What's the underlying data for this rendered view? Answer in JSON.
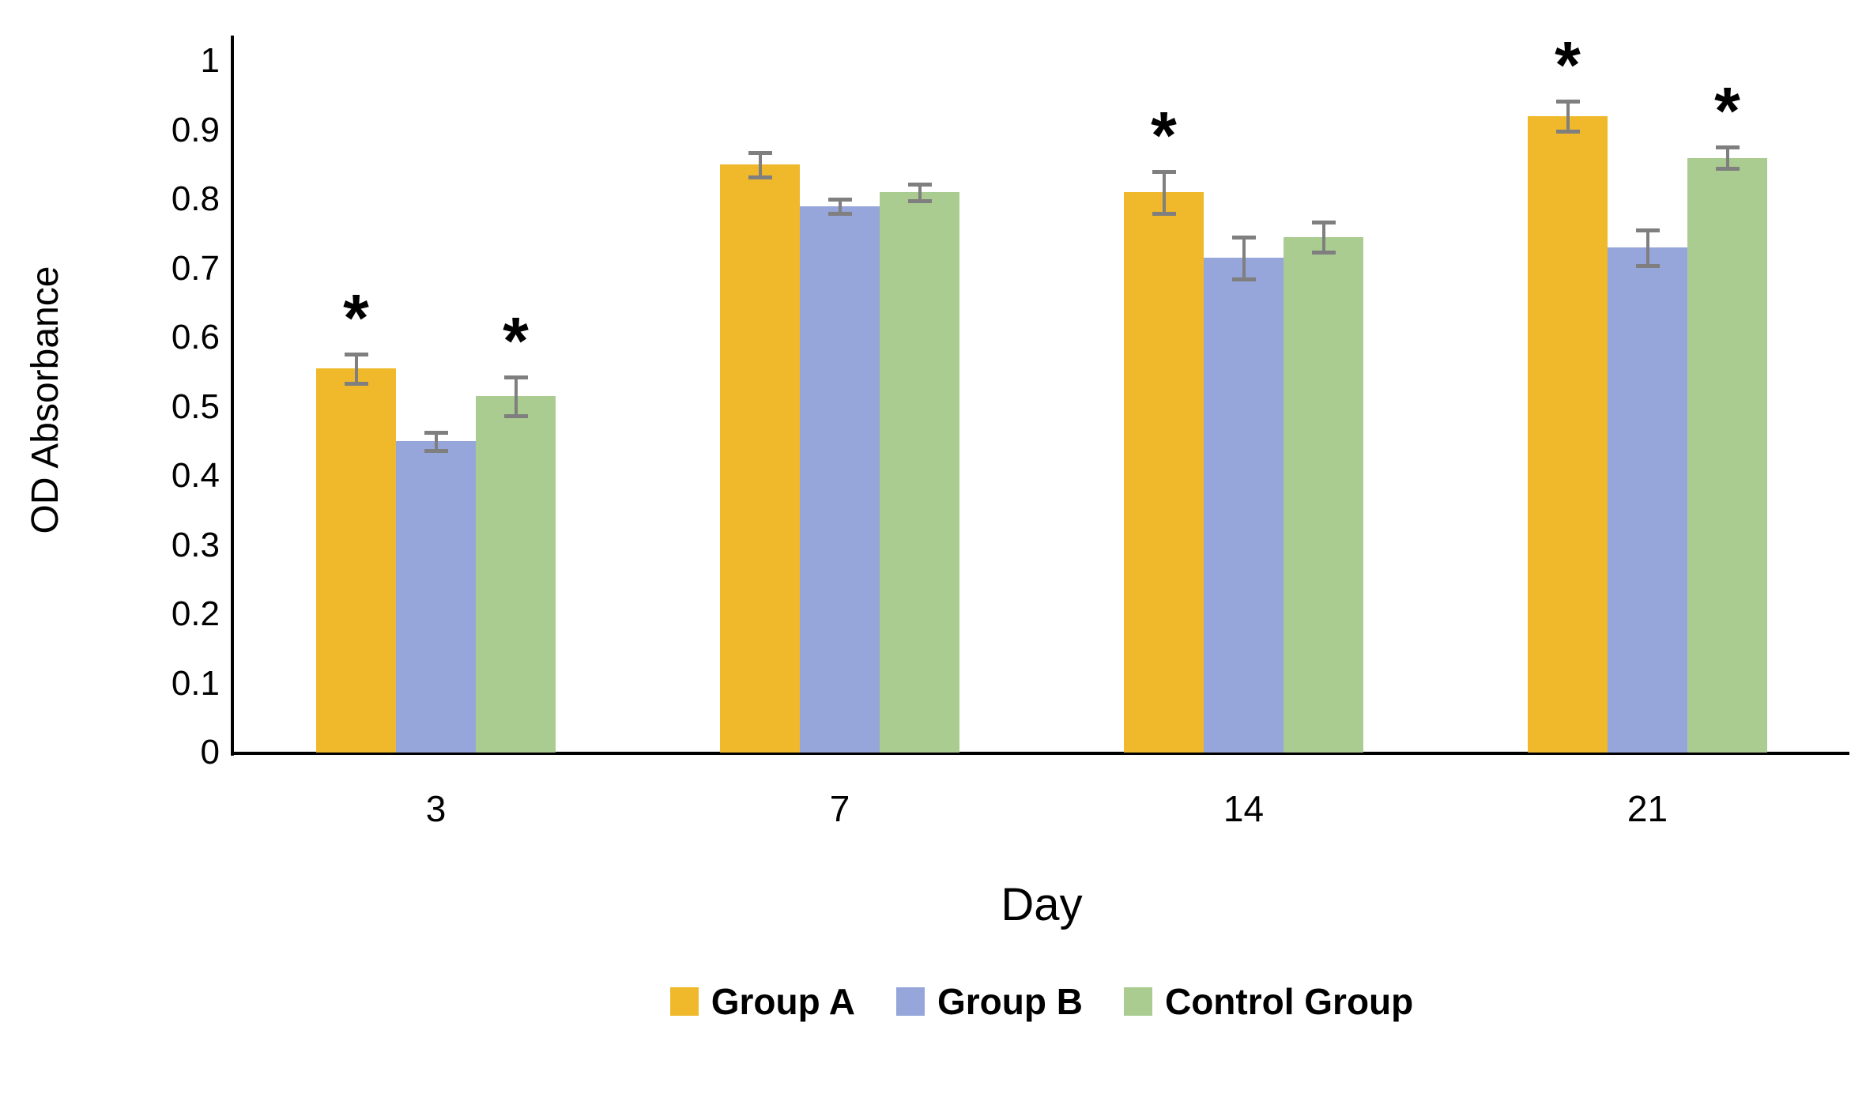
{
  "chart_data": {
    "type": "bar",
    "title": "",
    "xlabel": "Day",
    "ylabel": "OD Absorbance",
    "ylim": [
      0,
      1
    ],
    "yticks": [
      "0",
      "0.1",
      "0.2",
      "0.3",
      "0.4",
      "0.5",
      "0.6",
      "0.7",
      "0.8",
      "0.9",
      "1"
    ],
    "categories": [
      "3",
      "7",
      "14",
      "21"
    ],
    "series": [
      {
        "name": "Group A",
        "color": "#EFB92B",
        "values": [
          0.555,
          0.85,
          0.81,
          0.92
        ],
        "errors": [
          0.021,
          0.018,
          0.03,
          0.022
        ],
        "significant": [
          true,
          false,
          true,
          true
        ]
      },
      {
        "name": "Group B",
        "color": "#96A6DA",
        "values": [
          0.45,
          0.79,
          0.715,
          0.73
        ],
        "errors": [
          0.013,
          0.01,
          0.03,
          0.026
        ],
        "significant": [
          false,
          false,
          false,
          false
        ]
      },
      {
        "name": "Control Group",
        "color": "#ABCC91",
        "values": [
          0.515,
          0.81,
          0.745,
          0.86
        ],
        "errors": [
          0.028,
          0.012,
          0.022,
          0.015
        ],
        "significant": [
          true,
          false,
          false,
          true
        ]
      }
    ],
    "significance_marker": "*",
    "error_bar_color": "#7F7F7F",
    "axis_color": "#000000",
    "text_color": "#000000",
    "background": "#FFFFFF",
    "legend_position": "bottom",
    "grid": false
  }
}
